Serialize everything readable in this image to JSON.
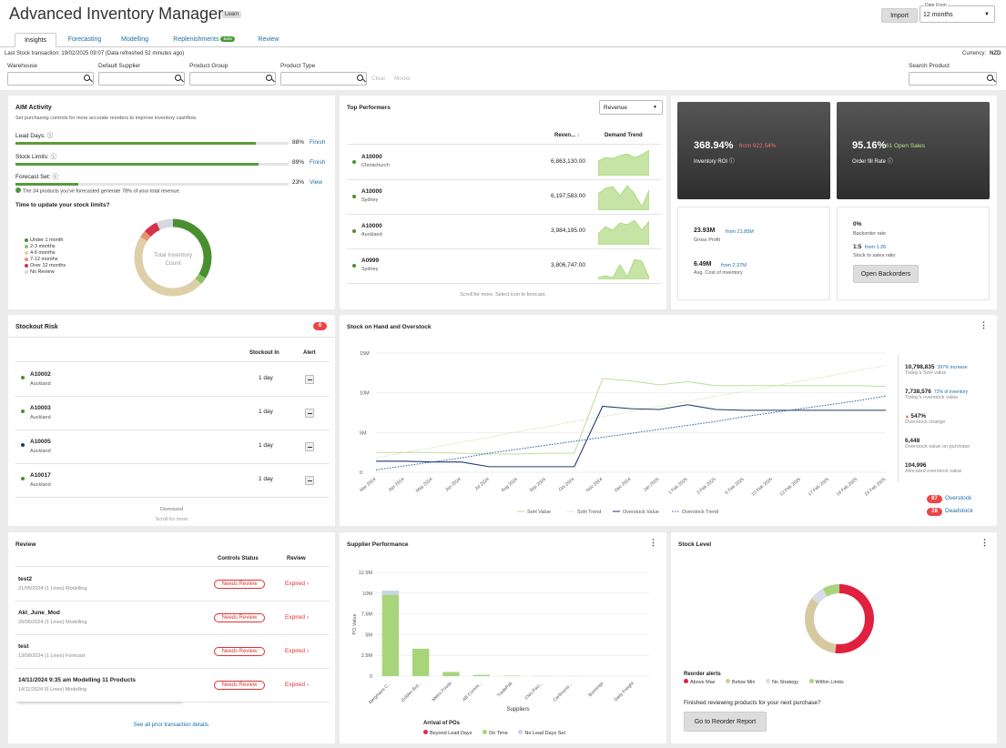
{
  "app": {
    "title": "Advanced Inventory Manager",
    "learn": "Learn",
    "import": "Import",
    "date_from_label": "Date From",
    "date_from_value": "12 months"
  },
  "tabs": [
    {
      "label": "Insights"
    },
    {
      "label": "Forecasting"
    },
    {
      "label": "Modelling"
    },
    {
      "label": "Replenishments",
      "badge": "Beta"
    },
    {
      "label": "Review"
    }
  ],
  "status": {
    "last_stock": "Last Stock transaction: 19/02/2025 09:07 (Data refreshed 52 minutes ago)",
    "currency_label": "Currency:",
    "currency": "NZD"
  },
  "filters": {
    "warehouse": "Warehouse",
    "supplier": "Default Supplier",
    "group": "Product Group",
    "type": "Product Type",
    "clear": "Clear",
    "model": "Model",
    "search": "Search Product"
  },
  "aim": {
    "title": "AIM Activity",
    "subtitle": "Set purchasing controls for more accurate reorders to improve inventory cashflow.",
    "items": [
      {
        "label": "Lead Days:",
        "pct": "88%",
        "value": 88,
        "action": "Finish"
      },
      {
        "label": "Stock Limits:",
        "pct": "89%",
        "value": 89,
        "action": "Finish"
      },
      {
        "label": "Forecast Set:",
        "pct": "23%",
        "value": 23,
        "action": "View"
      }
    ],
    "note": "The 34 products you've forecasted generate 78% of your total revenue.",
    "q": "Time to update your stock limits?",
    "legend": [
      {
        "label": "Under 1 month",
        "color": "#4a8f2f"
      },
      {
        "label": "2-3 months",
        "color": "#8cc063"
      },
      {
        "label": "4-6 months",
        "color": "#ddd0a8"
      },
      {
        "label": "7-12 months",
        "color": "#e89070"
      },
      {
        "label": "Over 12 months",
        "color": "#d4334a"
      },
      {
        "label": "No Review",
        "color": "#d4d8e0"
      }
    ],
    "donut_label_1": "Total Inventory",
    "donut_label_2": "Count"
  },
  "top": {
    "title": "Top Performers",
    "select": "Revenue",
    "col_rev": "Reven...",
    "col_trend": "Demand Trend",
    "foot": "Scroll for more. Select icon to forecast.",
    "rows": [
      {
        "sku": "A10000",
        "loc": "Christchurch",
        "rev": "6,863,130.00"
      },
      {
        "sku": "A10000",
        "loc": "Sydney",
        "rev": "6,197,583.00"
      },
      {
        "sku": "A10000",
        "loc": "Auckland",
        "rev": "3,984,195.00"
      },
      {
        "sku": "A0999",
        "loc": "Sydney",
        "rev": "3,806,747.00"
      }
    ]
  },
  "kpi": {
    "roi_value": "368.94%",
    "roi_from": "from 922.54%",
    "roi_label": "Inventory ROI",
    "fill_value": "95.16%",
    "fill_sub": "61 Open Sales",
    "fill_label": "Order fill Rate",
    "gp_value": "23.93M",
    "gp_from": "from 21.85M",
    "gp_label": "Gross Profit",
    "acoi_value": "6.49M",
    "acoi_from": "from 2.37M",
    "acoi_label": "Avg. Cost of inventory",
    "bo_value": "0%",
    "bo_label": "Backorder rate",
    "ss_value": "1:5",
    "ss_from": "from 1:26",
    "ss_label": "Stock to sales ratio",
    "open_bo": "Open Backorders"
  },
  "stockout": {
    "title": "Stockout Risk",
    "count": "6",
    "col_in": "Stockout In",
    "col_alert": "Alert",
    "dismissed": "Dismissed",
    "scroll": "Scroll for more",
    "rows": [
      {
        "sku": "A10002",
        "loc": "Auckland",
        "days": "1 day",
        "color": "#4a8f2f"
      },
      {
        "sku": "A10003",
        "loc": "Auckland",
        "days": "1 day",
        "color": "#4a8f2f"
      },
      {
        "sku": "A10005",
        "loc": "Auckland",
        "days": "1 day",
        "color": "#1d3a6e"
      },
      {
        "sku": "A10017",
        "loc": "Auckland",
        "days": "1 day",
        "color": "#4a8f2f"
      }
    ]
  },
  "soh": {
    "title": "Stock on Hand and Overstock",
    "stats": [
      {
        "value": "10,798,835",
        "extra": "397% increase",
        "label": "Today's SoH value"
      },
      {
        "value": "7,738,576",
        "extra": "72% of inventory",
        "label": "Today's overstock value"
      },
      {
        "value": "547%",
        "extra": "",
        "label": "Overstock change"
      },
      {
        "value": "6,448",
        "extra": "",
        "label": "Overstock value on purchase"
      },
      {
        "value": "104,996",
        "extra": "",
        "label": "Allocated overstock value"
      }
    ],
    "overstock_count": "87",
    "overstock_label": "Overstock",
    "deadstock_count": "28",
    "deadstock_label": "Deadstock"
  },
  "review": {
    "title": "Review",
    "col_status": "Controls Status",
    "col_review": "Review",
    "footer": "See all prior transaction details.",
    "rows": [
      {
        "name": "test2",
        "sub": "21/05/2024 (1 Lines) Modelling",
        "status": "Needs Review",
        "review": "Expired"
      },
      {
        "name": "Akl_June_Mod",
        "sub": "20/06/2024 (1 Lines) Modelling",
        "status": "Needs Review",
        "review": "Expired"
      },
      {
        "name": "test",
        "sub": "13/08/2024 (1 Lines) Forecast",
        "status": "Needs Review",
        "review": "Expired"
      },
      {
        "name": "14/11/2024 9:35 am Modelling 11 Products",
        "sub": "14/11/2024 (6 Lines) Modelling",
        "status": "Needs Review",
        "review": "Expired"
      }
    ]
  },
  "supplier": {
    "title": "Supplier Performance",
    "arrival": "Arrival of POs",
    "legend": [
      {
        "label": "Beyond Lead Days",
        "color": "#d4334a"
      },
      {
        "label": "On Time",
        "color": "#a8d47a"
      },
      {
        "label": "No Lead Days Set",
        "color": "#c9d3e6"
      }
    ]
  },
  "stocklevel": {
    "title": "Stock Level",
    "alerts": "Reorder alerts",
    "legend": [
      {
        "label": "Above Max",
        "color": "#e0213f"
      },
      {
        "label": "Below Min",
        "color": "#d8c8a0"
      },
      {
        "label": "No Strategy",
        "color": "#d8dce6"
      },
      {
        "label": "Within Limits",
        "color": "#a8d47a"
      }
    ],
    "question": "Finished reviewing products for your next purchase?",
    "button": "Go to Reorder Report"
  },
  "chart_data": [
    {
      "type": "line",
      "title": "Stock on Hand and Overstock",
      "categories": [
        "Mar 2024",
        "Apr 2024",
        "May 2024",
        "Jun 2024",
        "Jul 2024",
        "Aug 2024",
        "Sep 2024",
        "Oct 2024",
        "Nov 2024",
        "Dec 2024",
        "Jan 2025",
        "1 Feb 2025",
        "3 Feb 2025",
        "6 Feb 2025",
        "10 Feb 2025",
        "13 Feb 2025",
        "17 Feb 2025",
        "19 Feb 2025",
        "24 Feb 2025"
      ],
      "yticks": [
        "0",
        "5M",
        "10M",
        "15M"
      ],
      "ylim": [
        0,
        15000000
      ],
      "series": [
        {
          "name": "SoH Value",
          "values": [
            2500000,
            2500000,
            2500000,
            2400000,
            2300000,
            2300000,
            2400000,
            2400000,
            11800000,
            11500000,
            11000000,
            11400000,
            10900000,
            10900000,
            10900000,
            10900000,
            10900000,
            10900000,
            10800000
          ],
          "color": "#b5d98f"
        },
        {
          "name": "SoH Trend",
          "values": [
            1800000,
            2500000,
            3100000,
            3800000,
            4400000,
            5100000,
            5700000,
            6400000,
            7000000,
            7600000,
            8300000,
            8900000,
            9600000,
            10200000,
            10800000,
            11500000,
            12100000,
            12800000,
            13400000
          ],
          "color": "#c8e0a8"
        },
        {
          "name": "Overstock Value",
          "values": [
            1400000,
            1400000,
            1300000,
            1300000,
            700000,
            700000,
            700000,
            700000,
            8300000,
            8000000,
            7900000,
            8500000,
            7900000,
            7800000,
            7800000,
            7800000,
            7800000,
            7800000,
            7800000
          ],
          "color": "#1d3a6e"
        },
        {
          "name": "Overstock Trend",
          "values": [
            300000,
            800000,
            1300000,
            1800000,
            2400000,
            2900000,
            3400000,
            3900000,
            4400000,
            4900000,
            5400000,
            5900000,
            6400000,
            7000000,
            7500000,
            8000000,
            8500000,
            9000000,
            9600000
          ],
          "color": "#2c5aa8"
        }
      ]
    },
    {
      "type": "bar",
      "title": "Supplier Performance",
      "xlabel": "Suppliers",
      "ylabel": "PO Value",
      "categories": [
        "Bergmans C...",
        "Golden Bot...",
        "Metro Foods",
        "AB Commi...",
        "TradePak",
        "Cleo Paci...",
        "Caribouna ...",
        "Bunnings",
        "Daily Freight"
      ],
      "yticks": [
        "0",
        "2.5M",
        "5M",
        "7.5M",
        "10M",
        "12.5M"
      ],
      "ylim": [
        0,
        12500000
      ],
      "series": [
        {
          "name": "Beyond Lead Days",
          "values": [
            0,
            0,
            0,
            0,
            0,
            0,
            0,
            0,
            0
          ]
        },
        {
          "name": "On Time",
          "values": [
            9800000,
            3300000,
            500000,
            150000,
            50000,
            20000,
            10000,
            0,
            0
          ]
        },
        {
          "name": "No Lead Days Set",
          "values": [
            500000,
            0,
            0,
            0,
            0,
            0,
            0,
            0,
            0
          ]
        }
      ]
    },
    {
      "type": "pie",
      "title": "Time to update your stock limits?",
      "labels": [
        "Under 1 month",
        "2-3 months",
        "4-6 months",
        "7-12 months",
        "Over 12 months",
        "No Review"
      ],
      "values": [
        34,
        3,
        47,
        3,
        6,
        7
      ]
    },
    {
      "type": "pie",
      "title": "Stock Level",
      "labels": [
        "Above Max",
        "Below Min",
        "No Strategy",
        "Within Limits"
      ],
      "values": [
        52,
        33,
        7,
        8
      ]
    }
  ]
}
